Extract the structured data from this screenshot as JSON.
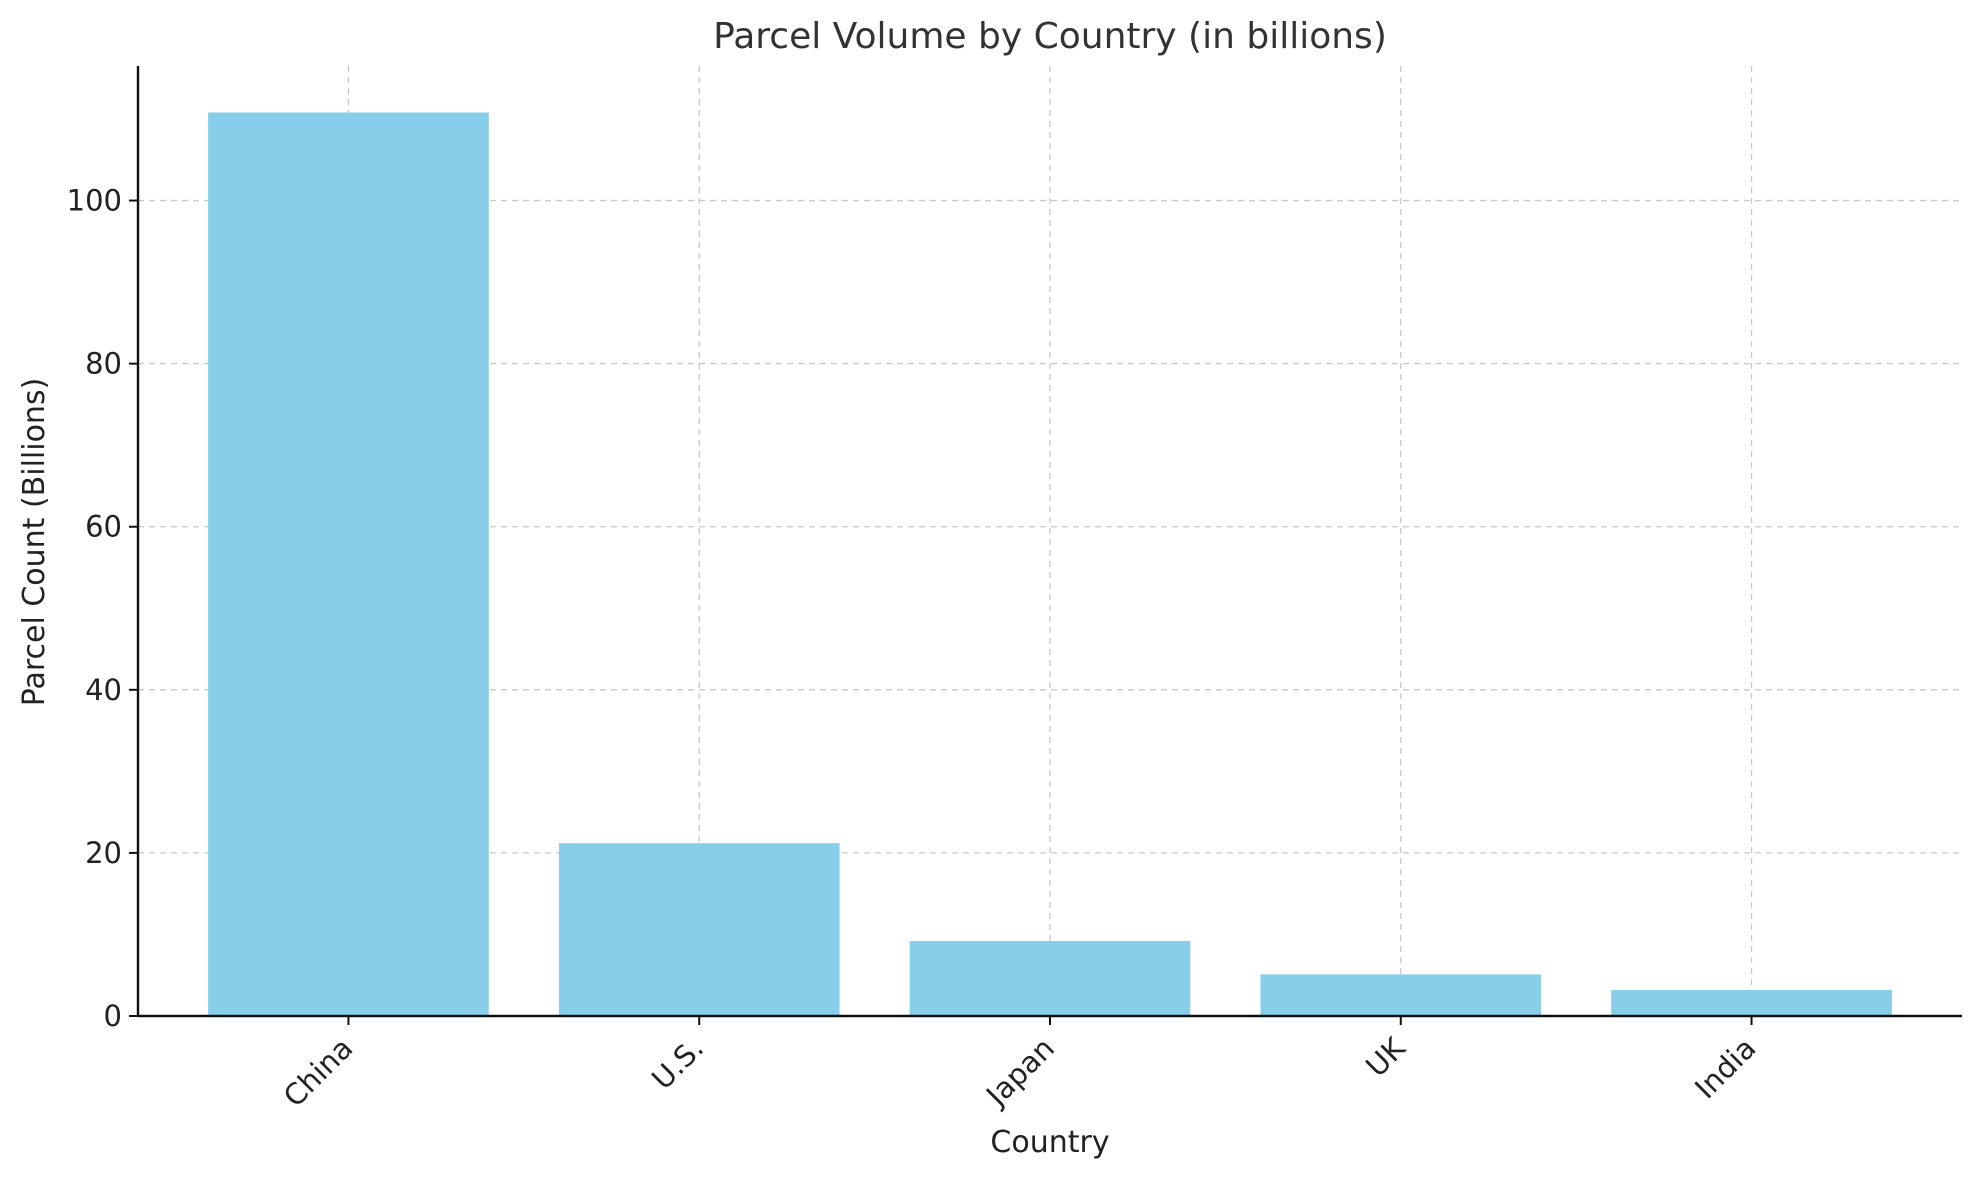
{
  "chart_data": {
    "type": "bar",
    "title": "Parcel Volume by Country (in billions)",
    "xlabel": "Country",
    "ylabel": "Parcel Count (Billions)",
    "categories": [
      "China",
      "U.S.",
      "Japan",
      "UK",
      "India"
    ],
    "values": [
      110.8,
      21.2,
      9.2,
      5.1,
      3.2
    ],
    "ylim": [
      0,
      116.5
    ],
    "yticks": [
      0,
      20,
      40,
      60,
      80,
      100
    ],
    "grid": true,
    "legend": "none",
    "colors": {
      "bar": "#87ceeb",
      "axis": "#111111",
      "grid": "#c8c8c8",
      "text": "#222222"
    }
  }
}
